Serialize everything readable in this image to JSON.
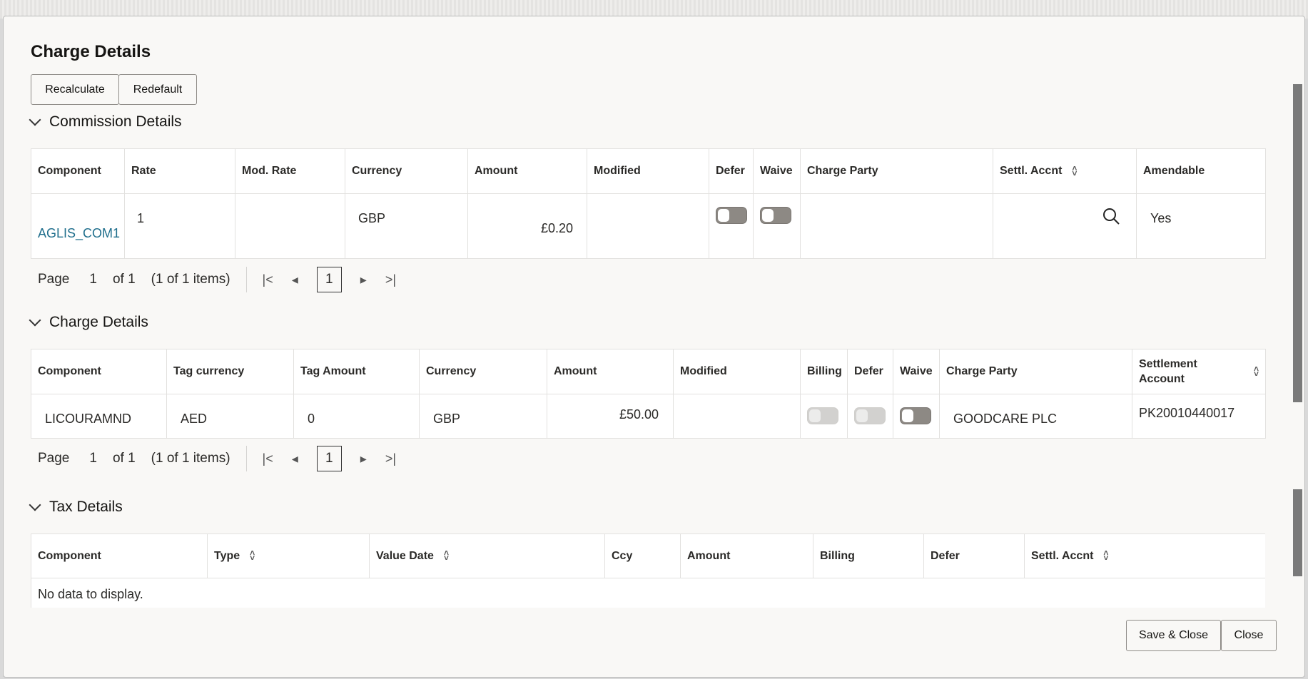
{
  "title": "Charge Details",
  "toolbar": {
    "recalculate": "Recalculate",
    "redefault": "Redefault"
  },
  "commission": {
    "title": "Commission Details",
    "columns": [
      "Component",
      "Rate",
      "Mod. Rate",
      "Currency",
      "Amount",
      "Modified",
      "Defer",
      "Waive",
      "Charge Party",
      "Settl. Accnt",
      "Amendable"
    ],
    "row": {
      "component": "AGLIS_COM1",
      "rate": "1",
      "mod_rate": "",
      "currency": "GBP",
      "amount": "£0.20",
      "modified": "",
      "defer": false,
      "waive": false,
      "charge_party": "",
      "settl_accnt": "",
      "amendable": "Yes"
    },
    "pager": {
      "label": "Page",
      "page": "1",
      "of": "of 1",
      "items": "(1 of 1 items)",
      "current": "1"
    }
  },
  "charges": {
    "title": "Charge Details",
    "columns": [
      "Component",
      "Tag currency",
      "Tag Amount",
      "Currency",
      "Amount",
      "Modified",
      "Billing",
      "Defer",
      "Waive",
      "Charge Party",
      "Settlement Account"
    ],
    "row": {
      "component": "LICOURAMND",
      "tag_currency": "AED",
      "tag_amount": "0",
      "currency": "GBP",
      "amount": "£50.00",
      "modified": "",
      "billing": false,
      "defer": false,
      "waive": false,
      "charge_party": "GOODCARE PLC",
      "settlement_account": "PK20010440017"
    },
    "pager": {
      "label": "Page",
      "page": "1",
      "of": "of 1",
      "items": "(1 of 1 items)",
      "current": "1"
    }
  },
  "tax": {
    "title": "Tax Details",
    "columns": [
      "Component",
      "Type",
      "Value Date",
      "Ccy",
      "Amount",
      "Billing",
      "Defer",
      "Settl. Accnt"
    ],
    "empty": "No data to display."
  },
  "footer": {
    "save_close": "Save & Close",
    "close": "Close"
  }
}
